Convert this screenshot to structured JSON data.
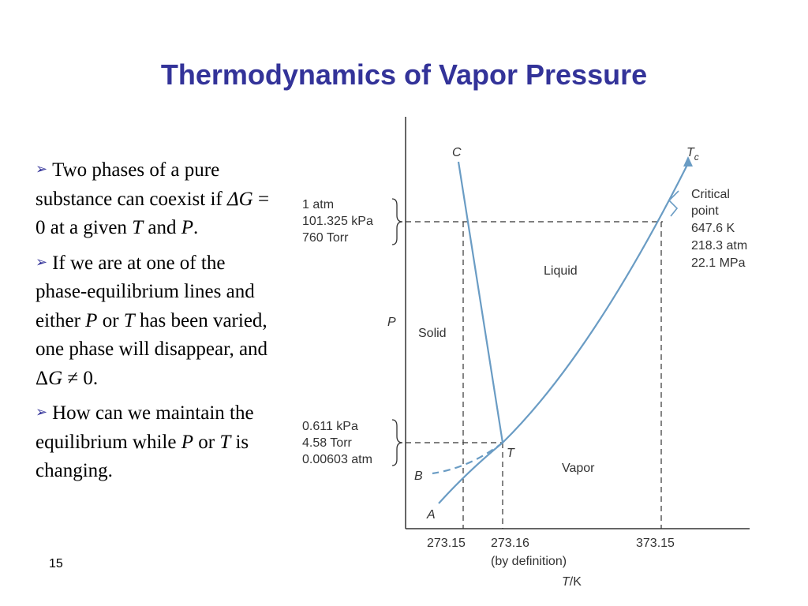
{
  "slide": {
    "title": "Thermodynamics of Vapor Pressure",
    "number": "15",
    "bullets": [
      [
        "Two phases of a pure substance can coexist if ",
        {
          "t": "ΔG"
        },
        " = 0 at a given ",
        {
          "t": "T"
        },
        " and ",
        {
          "t": "P"
        },
        "."
      ],
      [
        "If we are at one of the phase-equilibrium lines and either ",
        {
          "t": "P"
        },
        " or ",
        {
          "t": "T"
        },
        " has been varied, one phase will disappear, and Δ",
        {
          "t": "G"
        },
        " ≠ 0."
      ],
      [
        "How can we maintain the equilibrium while ",
        {
          "t": "P"
        },
        " or ",
        {
          "t": "T"
        },
        " is changing."
      ]
    ]
  },
  "diagram": {
    "line_color": "#6a9cc4",
    "axis_color": "#333333",
    "points": {
      "C": "C",
      "Tc": "T",
      "Tc_sub": "c",
      "T": "T",
      "B": "B",
      "A": "A"
    },
    "axes": {
      "p": "P",
      "t_unit_var": "T",
      "t_unit": "/K"
    },
    "regions": {
      "liquid": "Liquid",
      "solid": "Solid",
      "vapor": "Vapor"
    },
    "pressure_labels": {
      "upper": [
        "1 atm",
        "101.325 kPa",
        "760 Torr"
      ],
      "lower": [
        "0.611 kPa",
        "4.58 Torr",
        "0.00603 atm"
      ]
    },
    "critical_point": [
      "Critical",
      "point",
      "647.6 K",
      "218.3 atm",
      "22.1 MPa"
    ],
    "temperature_ticks": [
      "273.15",
      "273.16",
      "(by definition)",
      "373.15"
    ]
  }
}
